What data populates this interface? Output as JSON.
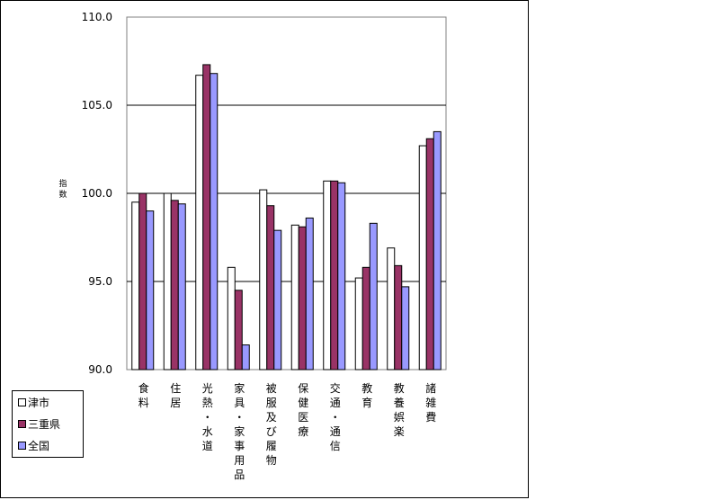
{
  "chart_data": {
    "type": "bar",
    "ylabel": "指数",
    "ylim": [
      90.0,
      110.0
    ],
    "yticks": [
      "90.0",
      "95.0",
      "100.0",
      "105.0",
      "110.0"
    ],
    "ytick_values": [
      90,
      95,
      100,
      105,
      110
    ],
    "grid": true,
    "legend_position": "bottom-left",
    "categories": [
      "食料",
      "住居",
      "光熱・水道",
      "家具・家事用品",
      "被服及び履物",
      "保健医療",
      "交通・通信",
      "教育",
      "教養娯楽",
      "諸雑費"
    ],
    "series": [
      {
        "name": "津市",
        "color": "#ffffff",
        "values": [
          99.5,
          100.0,
          106.7,
          95.8,
          100.2,
          98.2,
          100.7,
          95.2,
          96.9,
          102.7
        ]
      },
      {
        "name": "三重県",
        "color": "#993366",
        "values": [
          100.0,
          99.6,
          107.3,
          94.5,
          99.3,
          98.1,
          100.7,
          95.8,
          95.9,
          103.1
        ]
      },
      {
        "name": "全国",
        "color": "#9999ff",
        "values": [
          99.0,
          99.4,
          106.8,
          91.4,
          97.9,
          98.6,
          100.6,
          98.3,
          94.7,
          103.5
        ]
      }
    ]
  }
}
